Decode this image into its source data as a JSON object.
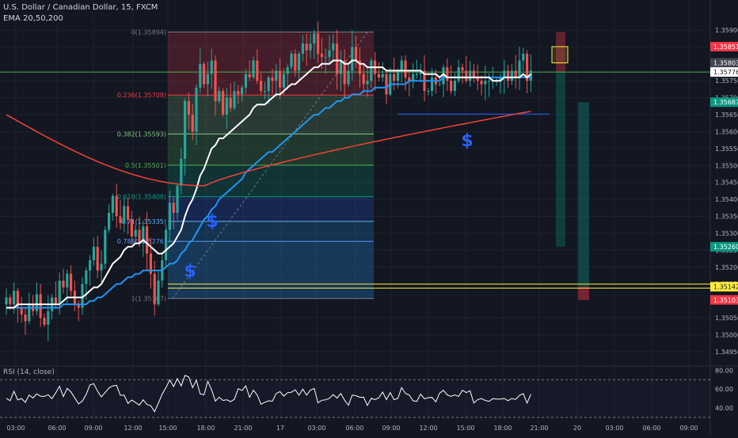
{
  "header": {
    "title": "U.S. Dollar / Canadian Dollar, 15, FXCM",
    "indicator": "EMA 20,50,200"
  },
  "rsi": {
    "label": "RSI (14, close)",
    "ticks": [
      "80.00",
      "60.00",
      "40.00"
    ],
    "tick_values": [
      80,
      60,
      40
    ],
    "range": [
      30,
      82
    ],
    "upper_band": 70,
    "lower_band": 30
  },
  "colors": {
    "background": "#131722",
    "bull": "#26a69a",
    "bear": "#ef5350",
    "ema20": "#ffffff",
    "ema50": "#2196f3",
    "ema200": "#f44336",
    "yellow": "#ffeb3b",
    "green_line": "#4caf50",
    "dollar": "#2962ff"
  },
  "chart_data": {
    "type": "candlestick",
    "symbol": "USDCAD",
    "timeframe": "15",
    "ylim": [
      1.3491,
      1.3597
    ],
    "y_ticks": [
      "1.35900",
      "1.35850",
      "1.35750",
      "1.35700",
      "1.35650",
      "1.35600",
      "1.35550",
      "1.35500",
      "1.35450",
      "1.35400",
      "1.35350",
      "1.35300",
      "1.35250",
      "1.35200",
      "1.35150",
      "1.35050",
      "1.35000",
      "1.34950"
    ],
    "y_tick_values": [
      1.359,
      1.3585,
      1.3575,
      1.357,
      1.3565,
      1.356,
      1.3555,
      1.355,
      1.3545,
      1.354,
      1.3535,
      1.353,
      1.3525,
      1.352,
      1.3515,
      1.3505,
      1.35,
      1.3495
    ],
    "x_ticks": [
      "03:00",
      "06:00",
      "09:00",
      "12:00",
      "15:00",
      "18:00",
      "21:00",
      "17",
      "03:00",
      "06:00",
      "09:00",
      "12:00",
      "15:00",
      "18:00",
      "21:00",
      "20",
      "03:00",
      "06:00",
      "09:00"
    ],
    "price_tags": [
      {
        "value": "1.35851",
        "color": "#f23645"
      },
      {
        "value": "1.35803",
        "color": "#434651"
      },
      {
        "value": "1.35776",
        "color": "#ffffff"
      },
      {
        "value": "1.35687",
        "color": "#089981"
      },
      {
        "value": "1.35260",
        "color": "#089981"
      },
      {
        "value": "1.35142",
        "color": "#ffeb3b"
      },
      {
        "value": "1.35103",
        "color": "#f23645"
      }
    ],
    "fibonacci": [
      {
        "ratio": "0",
        "label": "0(1.35894)",
        "price": 1.35894,
        "color": "#787b86"
      },
      {
        "ratio": "0.236",
        "label": "0.236(1.35708)",
        "price": 1.35708,
        "color": "#f23645"
      },
      {
        "ratio": "0.382",
        "label": "0.382(1.35593)",
        "price": 1.35593,
        "color": "#81c784"
      },
      {
        "ratio": "0.5",
        "label": "0.5(1.35501)",
        "price": 1.35501,
        "color": "#4caf50"
      },
      {
        "ratio": "0.618",
        "label": "0.618(1.35408)",
        "price": 1.35408,
        "color": "#089981"
      },
      {
        "ratio": "0.71",
        "label": "0.71(1.35335)",
        "price": 1.35335,
        "color": "#64b5f6"
      },
      {
        "ratio": "0.786",
        "label": "0.786(1.35276)",
        "price": 1.35276,
        "color": "#5b9cf6"
      },
      {
        "ratio": "1",
        "label": "1(1.35107)",
        "price": 1.35107,
        "color": "#787b86"
      }
    ],
    "horizontal_lines": [
      {
        "price": 1.35776,
        "color": "#4caf50"
      },
      {
        "price": 1.3515,
        "color": "#ffeb3b"
      },
      {
        "price": 1.35138,
        "color": "#ffeb3b"
      },
      {
        "price": 1.35652,
        "color": "#2962ff"
      }
    ],
    "closes": [
      1.3511,
      1.3509,
      1.3513,
      1.3508,
      1.3506,
      1.3504,
      1.3509,
      1.3507,
      1.3512,
      1.3505,
      1.3503,
      1.3507,
      1.3511,
      1.3509,
      1.3516,
      1.3514,
      1.3518,
      1.3513,
      1.3509,
      1.3508,
      1.3515,
      1.3519,
      1.3522,
      1.3526,
      1.3519,
      1.3521,
      1.3531,
      1.3536,
      1.3541,
      1.3535,
      1.3533,
      1.3538,
      1.3534,
      1.3529,
      1.3531,
      1.3527,
      1.3532,
      1.3524,
      1.3518,
      1.3509,
      1.3516,
      1.3522,
      1.3531,
      1.3539,
      1.3536,
      1.3544,
      1.3552,
      1.3569,
      1.3565,
      1.356,
      1.3573,
      1.358,
      1.3574,
      1.3577,
      1.3581,
      1.3569,
      1.3572,
      1.3565,
      1.357,
      1.3567,
      1.3572,
      1.3571,
      1.3573,
      1.3577,
      1.3576,
      1.3581,
      1.3575,
      1.3572,
      1.3572,
      1.3576,
      1.3575,
      1.3578,
      1.3573,
      1.3577,
      1.3579,
      1.3583,
      1.3578,
      1.3583,
      1.3586,
      1.3584,
      1.3586,
      1.3589,
      1.3583,
      1.3582,
      1.3582,
      1.3584,
      1.3586,
      1.3577,
      1.3581,
      1.3574,
      1.3578,
      1.3585,
      1.3581,
      1.3577,
      1.3574,
      1.3575,
      1.3581,
      1.3577,
      1.3576,
      1.3577,
      1.3571,
      1.3577,
      1.3575,
      1.3578,
      1.3581,
      1.3576,
      1.3575,
      1.3577,
      1.3577,
      1.3578,
      1.3572,
      1.3572,
      1.3576,
      1.3574,
      1.3574,
      1.3579,
      1.3575,
      1.3572,
      1.3575,
      1.3579,
      1.3578,
      1.3575,
      1.3578,
      1.3576,
      1.3575,
      1.3574,
      1.3575,
      1.3575,
      1.3575,
      1.3575,
      1.3576,
      1.3578,
      1.3575,
      1.3578,
      1.3576,
      1.3581,
      1.3583,
      1.3575,
      1.3578
    ],
    "ema20": [
      1.3508,
      1.3508,
      1.3508,
      1.3509,
      1.3509,
      1.3509,
      1.3509,
      1.3509,
      1.3509,
      1.3509,
      1.3509,
      1.3509,
      1.3509,
      1.3509,
      1.3509,
      1.351,
      1.3511,
      1.3511,
      1.3511,
      1.3511,
      1.3511,
      1.3512,
      1.3513,
      1.3514,
      1.3514,
      1.3515,
      1.3517,
      1.3519,
      1.3521,
      1.3522,
      1.3523,
      1.3525,
      1.3526,
      1.3526,
      1.3527,
      1.3527,
      1.3528,
      1.3527,
      1.3526,
      1.3525,
      1.3524,
      1.3524,
      1.3525,
      1.3526,
      1.3527,
      1.3529,
      1.3531,
      1.3535,
      1.3538,
      1.354,
      1.3543,
      1.3547,
      1.3549,
      1.3552,
      1.3555,
      1.3556,
      1.3558,
      1.3558,
      1.3559,
      1.356,
      1.3561,
      1.3562,
      1.3563,
      1.3564,
      1.3565,
      1.3567,
      1.3568,
      1.3568,
      1.3568,
      1.3569,
      1.357,
      1.3571,
      1.3571,
      1.3572,
      1.3573,
      1.3574,
      1.3574,
      1.3575,
      1.3576,
      1.3577,
      1.3578,
      1.3579,
      1.3579,
      1.358,
      1.358,
      1.358,
      1.3581,
      1.3581,
      1.3581,
      1.358,
      1.358,
      1.3581,
      1.3581,
      1.358,
      1.358,
      1.3579,
      1.3579,
      1.3579,
      1.3579,
      1.3579,
      1.3578,
      1.3578,
      1.3578,
      1.3578,
      1.3578,
      1.3578,
      1.3578,
      1.3578,
      1.3578,
      1.3578,
      1.3577,
      1.3577,
      1.3577,
      1.3577,
      1.3576,
      1.3577,
      1.3576,
      1.3576,
      1.3576,
      1.3576,
      1.3576,
      1.3576,
      1.3576,
      1.3576,
      1.3576,
      1.3576,
      1.3576,
      1.3576,
      1.3575,
      1.3575,
      1.3575,
      1.3576,
      1.3576,
      1.3576,
      1.3576,
      1.3576,
      1.3577,
      1.3576,
      1.3577
    ],
    "ema50": [
      1.3508,
      1.3508,
      1.3508,
      1.3508,
      1.3508,
      1.3508,
      1.3508,
      1.3508,
      1.3508,
      1.3508,
      1.3508,
      1.3508,
      1.3508,
      1.3508,
      1.3508,
      1.3509,
      1.3509,
      1.3509,
      1.3509,
      1.3509,
      1.3509,
      1.3509,
      1.351,
      1.351,
      1.3511,
      1.3511,
      1.3512,
      1.3513,
      1.3514,
      1.3515,
      1.3515,
      1.3516,
      1.3517,
      1.3517,
      1.3518,
      1.3518,
      1.3519,
      1.3519,
      1.3519,
      1.3519,
      1.3519,
      1.3519,
      1.352,
      1.3521,
      1.3521,
      1.3522,
      1.3524,
      1.3525,
      1.3527,
      1.3528,
      1.353,
      1.3532,
      1.3534,
      1.3535,
      1.3537,
      1.3538,
      1.354,
      1.3541,
      1.3542,
      1.3543,
      1.3544,
      1.3545,
      1.3546,
      1.3548,
      1.3549,
      1.355,
      1.3551,
      1.3552,
      1.3553,
      1.3554,
      1.3554,
      1.3555,
      1.3556,
      1.3557,
      1.3558,
      1.3559,
      1.356,
      1.3561,
      1.3562,
      1.3563,
      1.3564,
      1.3565,
      1.3565,
      1.3566,
      1.3567,
      1.3567,
      1.3568,
      1.3569,
      1.3569,
      1.357,
      1.357,
      1.3571,
      1.3571,
      1.3571,
      1.3572,
      1.3572,
      1.3572,
      1.3573,
      1.3573,
      1.3573,
      1.3573,
      1.3574,
      1.3574,
      1.3574,
      1.3574,
      1.3574,
      1.3575,
      1.3575,
      1.3575,
      1.3575,
      1.3575,
      1.3575,
      1.3575,
      1.3575,
      1.3575,
      1.3576,
      1.3576,
      1.3576,
      1.3576,
      1.3576,
      1.3576,
      1.3576,
      1.3576,
      1.3576,
      1.3576,
      1.3576,
      1.3576,
      1.3576,
      1.3576,
      1.3576,
      1.3576,
      1.3576,
      1.3576,
      1.3576,
      1.3576,
      1.3576,
      1.3576,
      1.3576,
      1.3576
    ],
    "ema200_start": 1.3565,
    "ema200_min": 1.3544,
    "ema200_end": 1.3566
  }
}
